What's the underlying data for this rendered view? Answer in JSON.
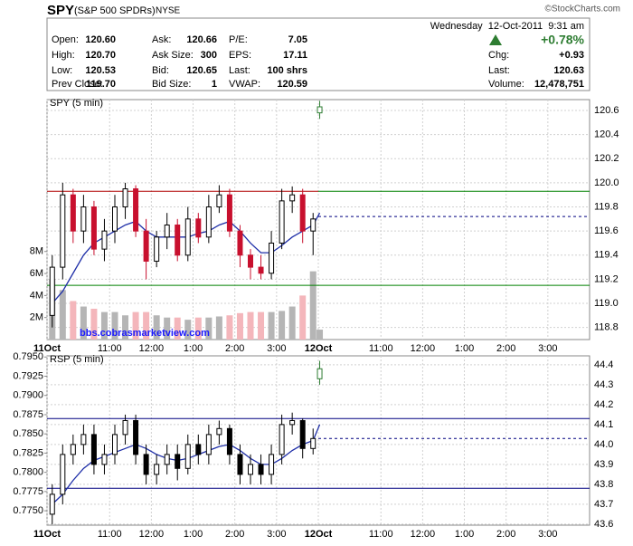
{
  "header": {
    "symbol": "SPY",
    "name": "(S&P 500 SPDRs)",
    "exchange": "NYSE",
    "credit": "©StockCharts.com",
    "datetime": "Wednesday  12-Oct-2011  9:31 am",
    "change_pct": "+0.78%",
    "columns": [
      [
        {
          "label": "Open:",
          "value": "120.60"
        },
        {
          "label": "High:",
          "value": "120.70"
        },
        {
          "label": "Low:",
          "value": "120.53"
        },
        {
          "label": "Prev Close:",
          "value": "119.70"
        }
      ],
      [
        {
          "label": "Ask:",
          "value": "120.66"
        },
        {
          "label": "Ask Size:",
          "value": "300"
        },
        {
          "label": "Bid:",
          "value": "120.65"
        },
        {
          "label": "Bid Size:",
          "value": "1"
        }
      ],
      [
        {
          "label": "P/E:",
          "value": "7.05"
        },
        {
          "label": "EPS:",
          "value": "17.11"
        },
        {
          "label": "Last:",
          "value": "100 shrs"
        },
        {
          "label": "VWAP:",
          "value": "120.59"
        }
      ],
      [
        {
          "label": "Chg:",
          "value": "+0.93"
        },
        {
          "label": "Last:",
          "value": "120.63"
        },
        {
          "label": "Volume:",
          "value": "12,478,751"
        }
      ]
    ]
  },
  "chart_data": [
    {
      "type": "candlestick",
      "label": "SPY (5 min)",
      "watermark": "bbs.cobrasmarketview.com",
      "xlim": [
        0,
        780
      ],
      "xticks": [
        {
          "value": 0,
          "label": "11Oct"
        },
        {
          "value": 90,
          "label": "11:00"
        },
        {
          "value": 150,
          "label": "12:00"
        },
        {
          "value": 210,
          "label": "1:00"
        },
        {
          "value": 270,
          "label": "2:00"
        },
        {
          "value": 330,
          "label": "3:00"
        },
        {
          "value": 390,
          "label": "12Oct"
        },
        {
          "value": 480,
          "label": "11:00"
        },
        {
          "value": 540,
          "label": "12:00"
        },
        {
          "value": 600,
          "label": "1:00"
        },
        {
          "value": 660,
          "label": "2:00"
        },
        {
          "value": 720,
          "label": "3:00"
        }
      ],
      "ylim": [
        0,
        21800000
      ],
      "yticks": [
        {
          "value": 2000000,
          "label": "2M"
        },
        {
          "value": 4000000,
          "label": "4M"
        },
        {
          "value": 6000000,
          "label": "6M"
        },
        {
          "value": 8000000,
          "label": "8M"
        }
      ],
      "y2lim": [
        118.7,
        120.69
      ],
      "y2ticks": [
        118.8,
        {
          "value": 119.0,
          "label": "119.0"
        },
        119.2,
        119.4,
        119.6,
        119.8,
        {
          "value": 120.0,
          "label": "120.0"
        },
        120.2,
        120.4,
        120.6
      ],
      "grid": true,
      "up_color": "#ffffff",
      "down_color": "#c8102e",
      "volume_up_color": "#b5b5b5",
      "volume_down_color": "#f4b6bb",
      "candles": {
        "x": [
          7.5,
          22.5,
          37.5,
          52.5,
          67.5,
          82.5,
          97.5,
          112.5,
          127.5,
          142.5,
          157.5,
          172.5,
          187.5,
          202.5,
          217.5,
          232.5,
          247.5,
          262.5,
          277.5,
          292.5,
          307.5,
          322.5,
          337.5,
          352.5,
          367.5,
          382.5,
          392
        ],
        "open": [
          118.9,
          119.3,
          119.9,
          119.6,
          119.8,
          119.45,
          119.6,
          119.8,
          119.95,
          119.6,
          119.35,
          119.55,
          119.65,
          119.4,
          119.7,
          119.55,
          119.8,
          119.9,
          119.6,
          119.4,
          119.3,
          119.25,
          119.5,
          119.85,
          119.9,
          119.6,
          120.58
        ],
        "high": [
          119.4,
          120.0,
          119.95,
          119.9,
          119.85,
          119.7,
          119.9,
          120.0,
          119.98,
          119.7,
          119.6,
          119.75,
          119.7,
          119.8,
          119.75,
          119.9,
          119.98,
          119.95,
          119.65,
          119.45,
          119.4,
          119.6,
          119.95,
          119.97,
          119.95,
          119.75,
          120.68
        ],
        "low": [
          118.8,
          119.2,
          119.5,
          119.5,
          119.4,
          119.35,
          119.5,
          119.7,
          119.55,
          119.2,
          119.3,
          119.45,
          119.35,
          119.35,
          119.5,
          119.5,
          119.75,
          119.55,
          119.3,
          119.2,
          119.2,
          119.2,
          119.45,
          119.75,
          119.5,
          119.4,
          120.53
        ],
        "close": [
          119.3,
          119.9,
          119.6,
          119.8,
          119.45,
          119.6,
          119.8,
          119.95,
          119.6,
          119.35,
          119.55,
          119.65,
          119.4,
          119.7,
          119.55,
          119.8,
          119.9,
          119.6,
          119.4,
          119.3,
          119.25,
          119.5,
          119.85,
          119.9,
          119.6,
          119.7,
          120.63
        ]
      },
      "volume": [
        5500000,
        4500000,
        3500000,
        3000000,
        2800000,
        2500000,
        2500000,
        2200000,
        2500000,
        2500000,
        2200000,
        2000000,
        2000000,
        1800000,
        2000000,
        2000000,
        2100000,
        2200000,
        2400000,
        2500000,
        2500000,
        2500000,
        2600000,
        3000000,
        4000000,
        6200000,
        900000
      ],
      "ma": {
        "color": "#1f2fa8",
        "values": [
          119.0,
          119.1,
          119.25,
          119.4,
          119.5,
          119.55,
          119.6,
          119.65,
          119.68,
          119.6,
          119.55,
          119.55,
          119.55,
          119.55,
          119.58,
          119.6,
          119.65,
          119.68,
          119.6,
          119.5,
          119.42,
          119.42,
          119.48,
          119.55,
          119.6,
          119.65,
          119.75
        ]
      },
      "levels": [
        {
          "value": 119.93,
          "color": "#b00000",
          "style": "solid",
          "x": [
            0,
            390
          ]
        },
        {
          "value": 119.93,
          "color": "#008000",
          "style": "solid",
          "x": [
            390,
            780
          ]
        },
        {
          "value": 119.15,
          "color": "#008000",
          "style": "solid",
          "x": [
            0,
            780
          ]
        },
        {
          "value": 119.72,
          "color": "#000080",
          "style": "dashed",
          "x": [
            390,
            780
          ]
        }
      ]
    },
    {
      "type": "candlestick",
      "label": "RSP (5 min)",
      "xlim": [
        0,
        780
      ],
      "xticks": [
        {
          "value": 0,
          "label": "11Oct"
        },
        {
          "value": 90,
          "label": "11:00"
        },
        {
          "value": 150,
          "label": "12:00"
        },
        {
          "value": 210,
          "label": "1:00"
        },
        {
          "value": 270,
          "label": "2:00"
        },
        {
          "value": 330,
          "label": "3:00"
        },
        {
          "value": 390,
          "label": "12Oct"
        },
        {
          "value": 480,
          "label": "11:00"
        },
        {
          "value": 540,
          "label": "12:00"
        },
        {
          "value": 600,
          "label": "1:00"
        },
        {
          "value": 660,
          "label": "2:00"
        },
        {
          "value": 720,
          "label": "3:00"
        }
      ],
      "ylim": [
        0.773125,
        0.79515
      ],
      "yticks": [
        {
          "value": 0.775,
          "label": "0.7750"
        },
        {
          "value": 0.7775,
          "label": "0.7775"
        },
        {
          "value": 0.78,
          "label": "0.7800"
        },
        {
          "value": 0.7825,
          "label": "0.7825"
        },
        {
          "value": 0.785,
          "label": "0.7850"
        },
        {
          "value": 0.7875,
          "label": "0.7875"
        },
        {
          "value": 0.79,
          "label": "0.7900"
        },
        {
          "value": 0.7925,
          "label": "0.7925"
        },
        {
          "value": 0.795,
          "label": "0.7950"
        }
      ],
      "y2lim": [
        43.595,
        44.445
      ],
      "y2ticks": [
        43.6,
        43.7,
        43.8,
        43.9,
        {
          "value": 44.0,
          "label": "44.0"
        },
        44.1,
        44.2,
        44.3,
        44.4
      ],
      "grid": true,
      "up_color": "#ffffff",
      "down_color": "#000000",
      "candles": {
        "x": [
          7.5,
          22.5,
          37.5,
          52.5,
          67.5,
          82.5,
          97.5,
          112.5,
          127.5,
          142.5,
          157.5,
          172.5,
          187.5,
          202.5,
          217.5,
          232.5,
          247.5,
          262.5,
          277.5,
          292.5,
          307.5,
          322.5,
          337.5,
          352.5,
          367.5,
          382.5,
          392
        ],
        "open": [
          43.65,
          43.75,
          43.95,
          44.0,
          44.05,
          43.9,
          43.95,
          44.05,
          44.12,
          43.95,
          43.85,
          43.9,
          43.95,
          43.88,
          44.0,
          43.95,
          44.05,
          44.08,
          43.95,
          43.85,
          43.9,
          43.85,
          43.95,
          44.1,
          44.12,
          43.98,
          44.33
        ],
        "high": [
          43.8,
          44.0,
          44.05,
          44.1,
          44.1,
          44.0,
          44.1,
          44.15,
          44.15,
          44.0,
          43.95,
          44.0,
          44.0,
          44.05,
          44.05,
          44.1,
          44.12,
          44.1,
          44.0,
          43.95,
          43.95,
          44.0,
          44.15,
          44.16,
          44.13,
          44.08,
          44.42
        ],
        "low": [
          43.6,
          43.7,
          43.9,
          43.95,
          43.85,
          43.85,
          43.9,
          44.0,
          43.9,
          43.8,
          43.8,
          43.85,
          43.82,
          43.85,
          43.9,
          43.9,
          44.0,
          43.9,
          43.8,
          43.8,
          43.8,
          43.8,
          43.9,
          44.05,
          43.93,
          43.95,
          44.3
        ],
        "close": [
          43.75,
          43.95,
          44.0,
          44.05,
          43.9,
          43.95,
          44.05,
          44.12,
          43.95,
          43.85,
          43.9,
          43.95,
          43.88,
          44.0,
          43.95,
          44.05,
          44.08,
          43.95,
          43.85,
          43.9,
          43.85,
          43.95,
          44.1,
          44.12,
          43.98,
          44.03,
          44.38
        ]
      },
      "ma": {
        "color": "#1f2fa8",
        "values": [
          43.7,
          43.75,
          43.82,
          43.88,
          43.92,
          43.94,
          43.96,
          43.98,
          44.0,
          43.98,
          43.95,
          43.93,
          43.92,
          43.93,
          43.95,
          43.97,
          43.99,
          44.0,
          43.97,
          43.93,
          43.9,
          43.9,
          43.93,
          43.97,
          44.0,
          44.02,
          44.1
        ]
      },
      "levels": [
        {
          "value": 44.13,
          "color": "#000080",
          "style": "solid",
          "x": [
            0,
            780
          ]
        },
        {
          "value": 43.78,
          "color": "#000080",
          "style": "solid",
          "x": [
            0,
            780
          ]
        },
        {
          "value": 44.03,
          "color": "#000080",
          "style": "dashed",
          "x": [
            390,
            780
          ]
        }
      ]
    }
  ]
}
